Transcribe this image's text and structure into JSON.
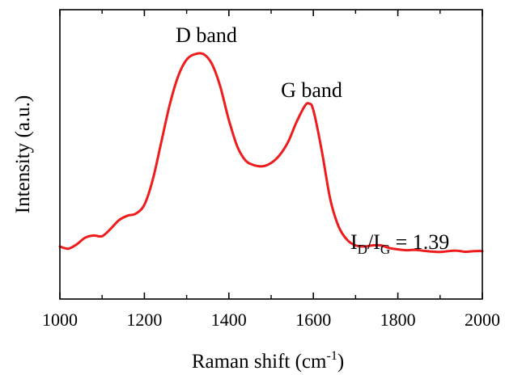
{
  "chart_data": {
    "type": "line",
    "xlabel": "Raman shift (cm",
    "xlabel_sup": "-1",
    "xlabel_close": ")",
    "ylabel": "Intensity (a.u.)",
    "xlim": [
      1000,
      2000
    ],
    "ylim": [
      0,
      1
    ],
    "x_ticks": [
      1000,
      1200,
      1400,
      1600,
      1800,
      2000
    ],
    "grid": false,
    "series": [
      {
        "color": "#ee1c1c",
        "x": [
          1000,
          1020,
          1040,
          1060,
          1080,
          1100,
          1120,
          1140,
          1160,
          1180,
          1200,
          1220,
          1240,
          1260,
          1280,
          1300,
          1320,
          1340,
          1360,
          1380,
          1400,
          1420,
          1440,
          1460,
          1480,
          1500,
          1520,
          1540,
          1560,
          1580,
          1590,
          1600,
          1620,
          1640,
          1660,
          1680,
          1700,
          1720,
          1740,
          1760,
          1780,
          1800,
          1820,
          1840,
          1860,
          1880,
          1900,
          1920,
          1940,
          1960,
          1980,
          2000
        ],
        "y": [
          0.125,
          0.115,
          0.135,
          0.165,
          0.175,
          0.172,
          0.205,
          0.245,
          0.265,
          0.275,
          0.315,
          0.43,
          0.6,
          0.77,
          0.9,
          0.975,
          1.0,
          1.0,
          0.955,
          0.85,
          0.7,
          0.58,
          0.515,
          0.495,
          0.49,
          0.505,
          0.54,
          0.6,
          0.69,
          0.765,
          0.775,
          0.745,
          0.56,
          0.34,
          0.215,
          0.155,
          0.13,
          0.125,
          0.13,
          0.13,
          0.118,
          0.112,
          0.108,
          0.11,
          0.106,
          0.102,
          0.1,
          0.104,
          0.106,
          0.101,
          0.104,
          0.104
        ]
      }
    ],
    "annotations": [
      {
        "text": "D band",
        "x": 1340
      },
      {
        "text": "G band",
        "x": 1590
      }
    ],
    "ratio_label": {
      "I1": "I",
      "sub1": "D",
      "slash": "/I",
      "sub2": "G",
      "rest": " = 1.39"
    }
  }
}
